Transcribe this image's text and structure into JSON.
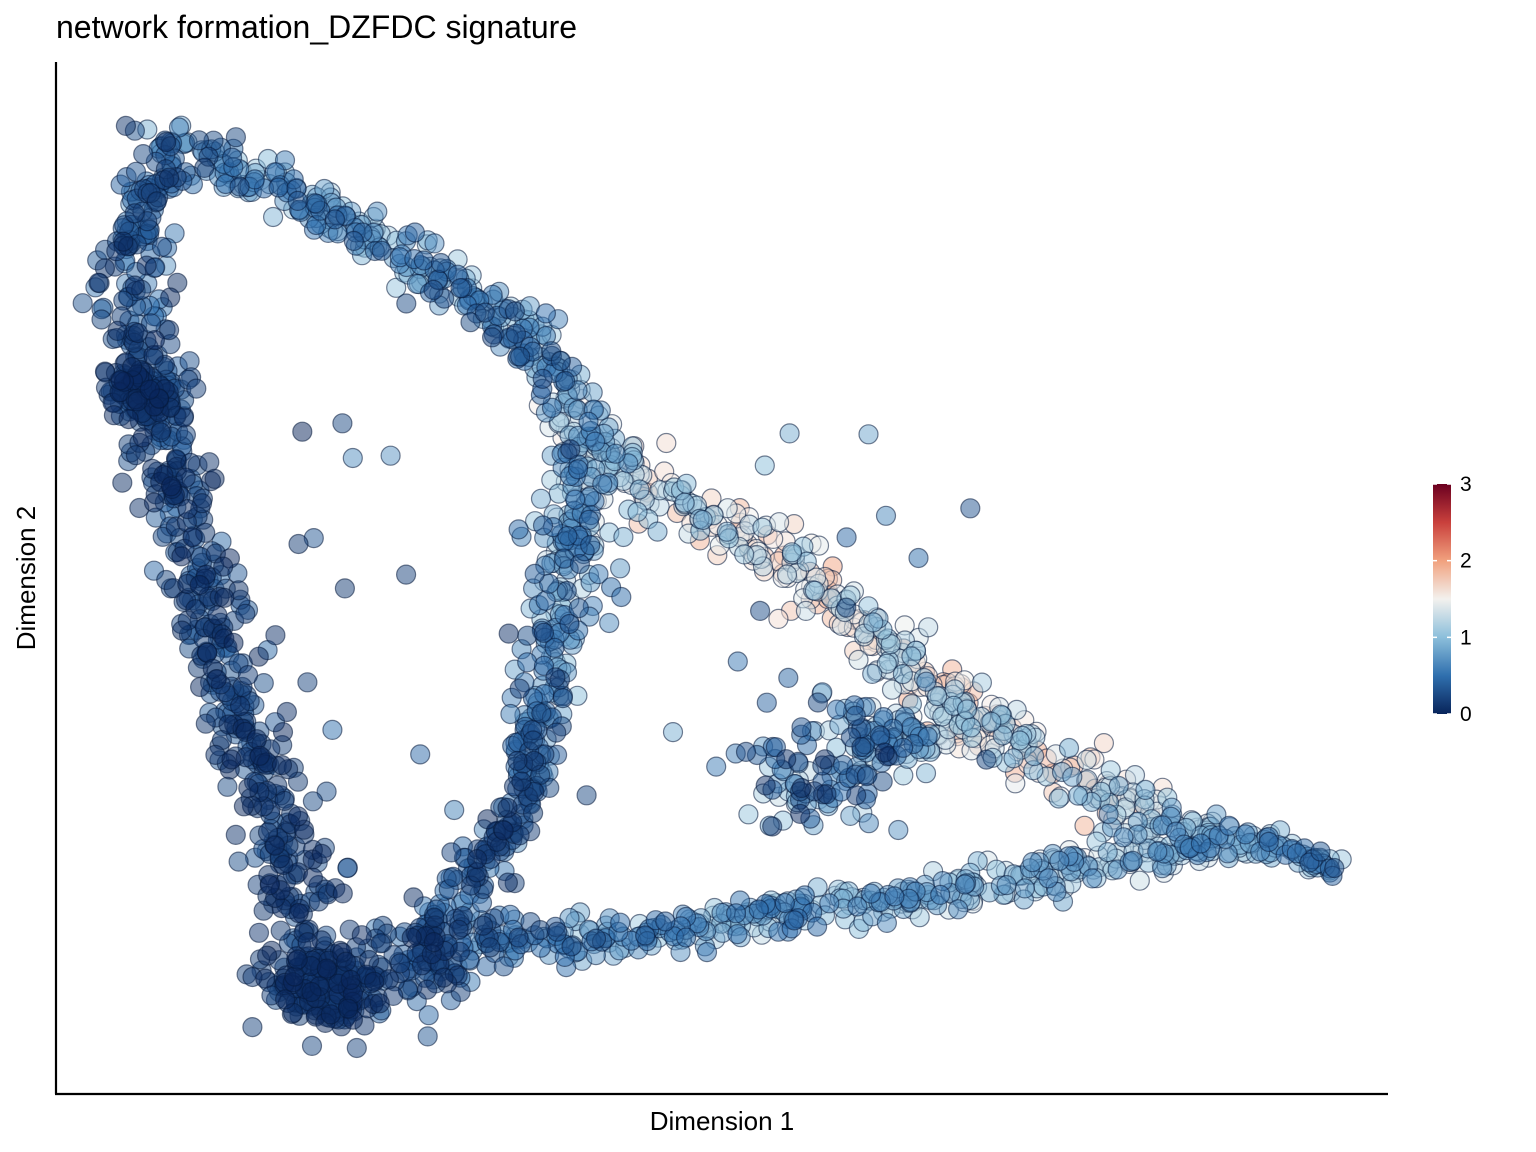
{
  "chart_data": {
    "type": "scatter",
    "title": "network formation_DZFDC signature",
    "xlabel": "Dimension 1",
    "ylabel": "Dimension 2",
    "xlim": [
      0,
      100
    ],
    "ylim": [
      0,
      100
    ],
    "grid": false,
    "x_ticks_shown": false,
    "y_ticks_shown": false,
    "color_scale": {
      "name": "RdBu (reversed)",
      "domain": [
        0,
        3
      ],
      "ticks": [
        0,
        1,
        2,
        3
      ],
      "tick_labels": [
        "0",
        "1",
        "2",
        "3"
      ],
      "colors": [
        "#08245a",
        "#2f6fae",
        "#8cbfdb",
        "#f3f1ee",
        "#f1a17e",
        "#c9403c",
        "#6b0020"
      ],
      "placement": "right"
    },
    "point_opacity": 0.5,
    "trajectory": [
      {
        "x": 8.5,
        "y": 92.0,
        "spread": 2.0,
        "v_min": 0.0,
        "v_max": 1.0
      },
      {
        "x": 12.0,
        "y": 90.0,
        "spread": 1.5,
        "v_min": 0.2,
        "v_max": 1.1
      },
      {
        "x": 18.0,
        "y": 87.0,
        "spread": 1.5,
        "v_min": 0.3,
        "v_max": 1.2
      },
      {
        "x": 25.0,
        "y": 82.0,
        "spread": 1.5,
        "v_min": 0.3,
        "v_max": 1.2
      },
      {
        "x": 32.0,
        "y": 77.0,
        "spread": 1.5,
        "v_min": 0.2,
        "v_max": 1.1
      },
      {
        "x": 37.0,
        "y": 71.0,
        "spread": 1.7,
        "v_min": 0.2,
        "v_max": 1.2
      },
      {
        "x": 40.0,
        "y": 64.0,
        "spread": 2.0,
        "v_min": 0.5,
        "v_max": 1.7
      },
      {
        "x": 46.0,
        "y": 58.0,
        "spread": 2.0,
        "v_min": 0.8,
        "v_max": 1.9
      },
      {
        "x": 54.0,
        "y": 52.0,
        "spread": 1.8,
        "v_min": 1.0,
        "v_max": 2.0
      },
      {
        "x": 61.0,
        "y": 45.0,
        "spread": 1.8,
        "v_min": 0.9,
        "v_max": 2.0
      },
      {
        "x": 68.0,
        "y": 37.0,
        "spread": 2.0,
        "v_min": 0.9,
        "v_max": 2.0
      },
      {
        "x": 78.0,
        "y": 29.0,
        "spread": 2.0,
        "v_min": 0.8,
        "v_max": 2.0
      },
      {
        "x": 88.0,
        "y": 25.0,
        "spread": 1.4,
        "v_min": 0.5,
        "v_max": 1.4
      },
      {
        "x": 96.0,
        "y": 22.0,
        "spread": 0.9,
        "v_min": 0.3,
        "v_max": 1.0
      },
      {
        "x": 6.0,
        "y": 84.0,
        "spread": 1.5,
        "v_min": 0.0,
        "v_max": 0.8
      },
      {
        "x": 6.5,
        "y": 72.0,
        "spread": 2.2,
        "v_min": 0.0,
        "v_max": 0.5
      },
      {
        "x": 9.0,
        "y": 58.0,
        "spread": 2.0,
        "v_min": 0.0,
        "v_max": 0.5
      },
      {
        "x": 12.0,
        "y": 45.0,
        "spread": 2.0,
        "v_min": 0.0,
        "v_max": 0.5
      },
      {
        "x": 15.0,
        "y": 32.0,
        "spread": 2.0,
        "v_min": 0.0,
        "v_max": 0.4
      },
      {
        "x": 20.0,
        "y": 11.0,
        "spread": 3.0,
        "v_min": 0.0,
        "v_max": 0.4
      },
      {
        "x": 27.0,
        "y": 12.0,
        "spread": 2.5,
        "v_min": 0.0,
        "v_max": 0.6
      },
      {
        "x": 33.0,
        "y": 15.0,
        "spread": 2.0,
        "v_min": 0.1,
        "v_max": 0.9
      },
      {
        "x": 42.0,
        "y": 15.0,
        "spread": 1.5,
        "v_min": 0.3,
        "v_max": 1.1
      },
      {
        "x": 52.0,
        "y": 17.0,
        "spread": 1.5,
        "v_min": 0.4,
        "v_max": 1.3
      },
      {
        "x": 62.0,
        "y": 19.0,
        "spread": 1.5,
        "v_min": 0.5,
        "v_max": 1.4
      },
      {
        "x": 72.0,
        "y": 21.0,
        "spread": 1.5,
        "v_min": 0.6,
        "v_max": 1.5
      },
      {
        "x": 82.0,
        "y": 23.0,
        "spread": 1.5,
        "v_min": 0.6,
        "v_max": 1.6
      },
      {
        "x": 31.0,
        "y": 21.0,
        "spread": 1.5,
        "v_min": 0.0,
        "v_max": 0.7
      },
      {
        "x": 35.0,
        "y": 27.0,
        "spread": 1.5,
        "v_min": 0.0,
        "v_max": 0.7
      },
      {
        "x": 64.0,
        "y": 33.0,
        "spread": 1.7,
        "v_min": 0.4,
        "v_max": 1.5
      },
      {
        "x": 57.0,
        "y": 38.0,
        "spread": 2.5,
        "v_min": 0.0,
        "v_max": 1.2
      }
    ]
  }
}
